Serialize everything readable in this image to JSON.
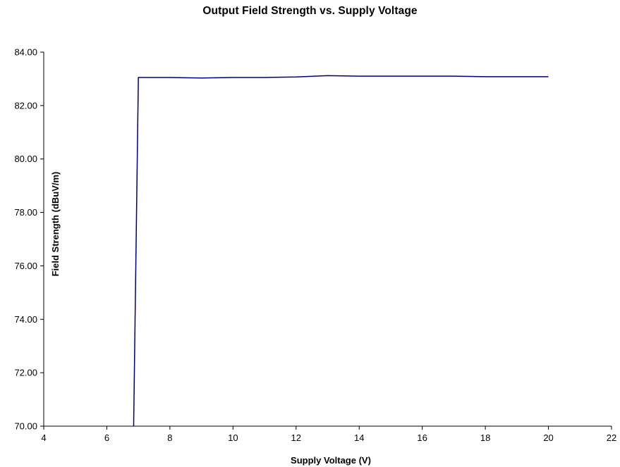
{
  "title": "Output Field Strength vs. Supply Voltage",
  "chart_data": {
    "type": "line",
    "title": "Output Field Strength vs. Supply Voltage",
    "xlabel": "Supply Voltage (V)",
    "ylabel": "Field Strength (dBuV/m)",
    "xlim": [
      4,
      22
    ],
    "ylim": [
      70,
      84
    ],
    "xticks": [
      4,
      6,
      8,
      10,
      12,
      14,
      16,
      18,
      20,
      22
    ],
    "yticks": [
      70,
      72,
      74,
      76,
      78,
      80,
      82,
      84
    ],
    "x_tick_labels": [
      "4",
      "6",
      "8",
      "10",
      "12",
      "14",
      "16",
      "18",
      "20",
      "22"
    ],
    "y_tick_labels": [
      "70.00",
      "72.00",
      "74.00",
      "76.00",
      "78.00",
      "80.00",
      "82.00",
      "84.00"
    ],
    "grid": false,
    "legend": "none",
    "series": [
      {
        "color": "#000080",
        "points": [
          [
            6.85,
            70.0
          ],
          [
            7.0,
            83.05
          ],
          [
            8.0,
            83.05
          ],
          [
            9.0,
            83.03
          ],
          [
            10.0,
            83.05
          ],
          [
            11.0,
            83.05
          ],
          [
            12.0,
            83.07
          ],
          [
            13.0,
            83.12
          ],
          [
            14.0,
            83.1
          ],
          [
            15.0,
            83.1
          ],
          [
            16.0,
            83.1
          ],
          [
            17.0,
            83.1
          ],
          [
            18.0,
            83.08
          ],
          [
            19.0,
            83.08
          ],
          [
            20.0,
            83.08
          ]
        ]
      }
    ]
  }
}
